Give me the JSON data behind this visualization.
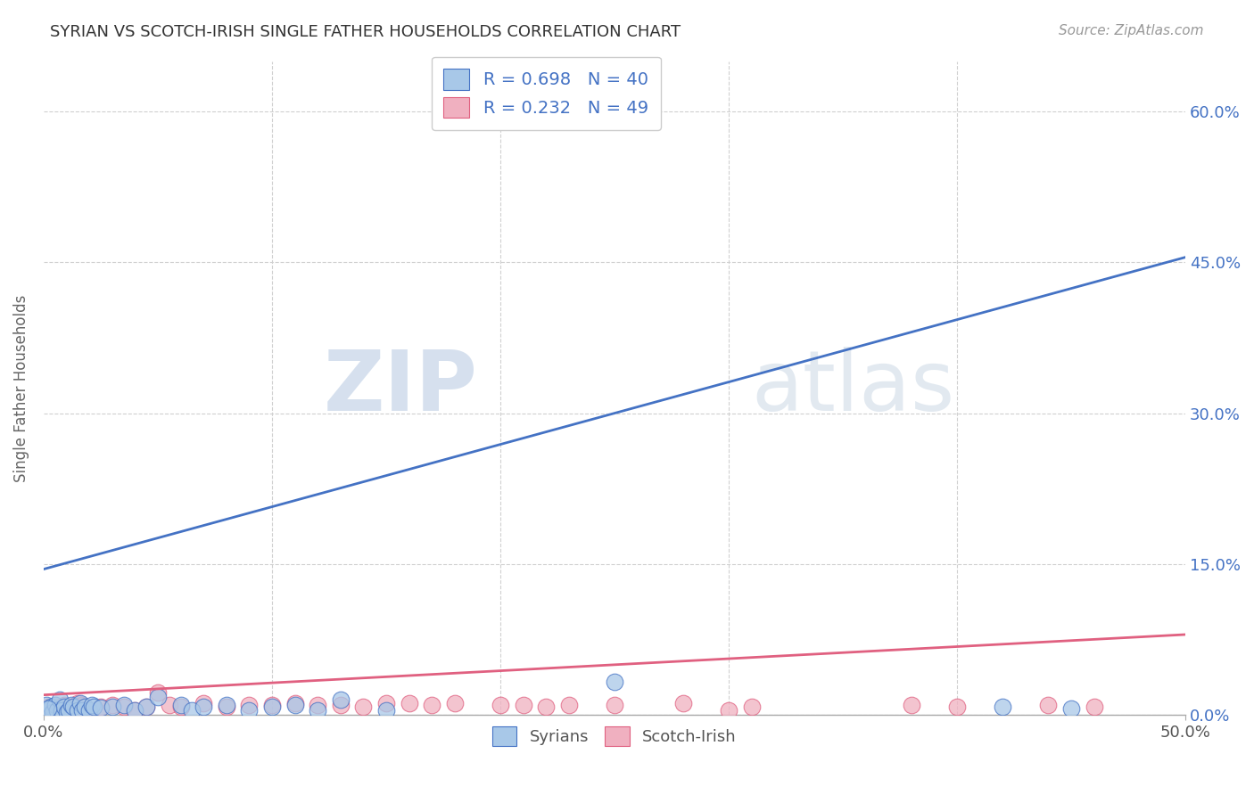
{
  "title": "SYRIAN VS SCOTCH-IRISH SINGLE FATHER HOUSEHOLDS CORRELATION CHART",
  "source": "Source: ZipAtlas.com",
  "xlabel": "",
  "ylabel": "Single Father Households",
  "xlim": [
    0.0,
    0.5
  ],
  "ylim": [
    0.0,
    0.65
  ],
  "xticks": [
    0.0,
    0.5
  ],
  "xtick_labels": [
    "0.0%",
    "50.0%"
  ],
  "yticks": [
    0.0,
    0.15,
    0.3,
    0.45,
    0.6
  ],
  "ytick_labels_right": [
    "0.0%",
    "15.0%",
    "30.0%",
    "45.0%",
    "60.0%"
  ],
  "syrian_color": "#a8c8e8",
  "scotch_irish_color": "#f0b0c0",
  "syrian_line_color": "#4472c4",
  "scotch_irish_line_color": "#e06080",
  "syrian_R": 0.698,
  "syrian_N": 40,
  "scotch_irish_R": 0.232,
  "scotch_irish_N": 49,
  "legend_text_color": "#4472c4",
  "watermark_zip": "ZIP",
  "watermark_atlas": "atlas",
  "background_color": "#ffffff",
  "grid_color": "#d0d0d0",
  "syrian_scatter": [
    [
      0.001,
      0.01
    ],
    [
      0.002,
      0.005
    ],
    [
      0.003,
      0.008
    ],
    [
      0.004,
      0.003
    ],
    [
      0.005,
      0.01
    ],
    [
      0.006,
      0.005
    ],
    [
      0.007,
      0.015
    ],
    [
      0.008,
      0.005
    ],
    [
      0.009,
      0.008
    ],
    [
      0.01,
      0.003
    ],
    [
      0.011,
      0.005
    ],
    [
      0.012,
      0.01
    ],
    [
      0.013,
      0.008
    ],
    [
      0.015,
      0.005
    ],
    [
      0.016,
      0.012
    ],
    [
      0.017,
      0.005
    ],
    [
      0.018,
      0.008
    ],
    [
      0.02,
      0.005
    ],
    [
      0.021,
      0.01
    ],
    [
      0.022,
      0.008
    ],
    [
      0.025,
      0.007
    ],
    [
      0.03,
      0.008
    ],
    [
      0.035,
      0.01
    ],
    [
      0.04,
      0.005
    ],
    [
      0.045,
      0.008
    ],
    [
      0.05,
      0.018
    ],
    [
      0.06,
      0.01
    ],
    [
      0.065,
      0.005
    ],
    [
      0.07,
      0.008
    ],
    [
      0.08,
      0.01
    ],
    [
      0.09,
      0.005
    ],
    [
      0.1,
      0.008
    ],
    [
      0.11,
      0.01
    ],
    [
      0.12,
      0.005
    ],
    [
      0.13,
      0.015
    ],
    [
      0.15,
      0.005
    ],
    [
      0.25,
      0.033
    ],
    [
      0.42,
      0.008
    ],
    [
      0.45,
      0.006
    ],
    [
      0.002,
      0.006
    ]
  ],
  "scotch_irish_scatter": [
    [
      0.001,
      0.005
    ],
    [
      0.002,
      0.008
    ],
    [
      0.003,
      0.003
    ],
    [
      0.004,
      0.005
    ],
    [
      0.005,
      0.005
    ],
    [
      0.006,
      0.008
    ],
    [
      0.007,
      0.003
    ],
    [
      0.008,
      0.005
    ],
    [
      0.009,
      0.01
    ],
    [
      0.01,
      0.005
    ],
    [
      0.011,
      0.008
    ],
    [
      0.012,
      0.003
    ],
    [
      0.015,
      0.012
    ],
    [
      0.016,
      0.005
    ],
    [
      0.017,
      0.01
    ],
    [
      0.018,
      0.008
    ],
    [
      0.02,
      0.005
    ],
    [
      0.025,
      0.008
    ],
    [
      0.03,
      0.01
    ],
    [
      0.035,
      0.008
    ],
    [
      0.04,
      0.005
    ],
    [
      0.045,
      0.008
    ],
    [
      0.05,
      0.022
    ],
    [
      0.055,
      0.01
    ],
    [
      0.06,
      0.008
    ],
    [
      0.07,
      0.012
    ],
    [
      0.08,
      0.008
    ],
    [
      0.09,
      0.01
    ],
    [
      0.1,
      0.01
    ],
    [
      0.11,
      0.012
    ],
    [
      0.12,
      0.01
    ],
    [
      0.13,
      0.01
    ],
    [
      0.14,
      0.008
    ],
    [
      0.15,
      0.012
    ],
    [
      0.16,
      0.012
    ],
    [
      0.17,
      0.01
    ],
    [
      0.18,
      0.012
    ],
    [
      0.2,
      0.01
    ],
    [
      0.21,
      0.01
    ],
    [
      0.22,
      0.008
    ],
    [
      0.23,
      0.01
    ],
    [
      0.25,
      0.01
    ],
    [
      0.28,
      0.012
    ],
    [
      0.3,
      0.005
    ],
    [
      0.31,
      0.008
    ],
    [
      0.38,
      0.01
    ],
    [
      0.4,
      0.008
    ],
    [
      0.44,
      0.01
    ],
    [
      0.46,
      0.008
    ]
  ],
  "syrian_line_x": [
    0.0,
    0.5
  ],
  "syrian_line_y": [
    0.145,
    0.455
  ],
  "scotch_irish_line_x": [
    0.0,
    0.5
  ],
  "scotch_irish_line_y": [
    0.02,
    0.08
  ]
}
